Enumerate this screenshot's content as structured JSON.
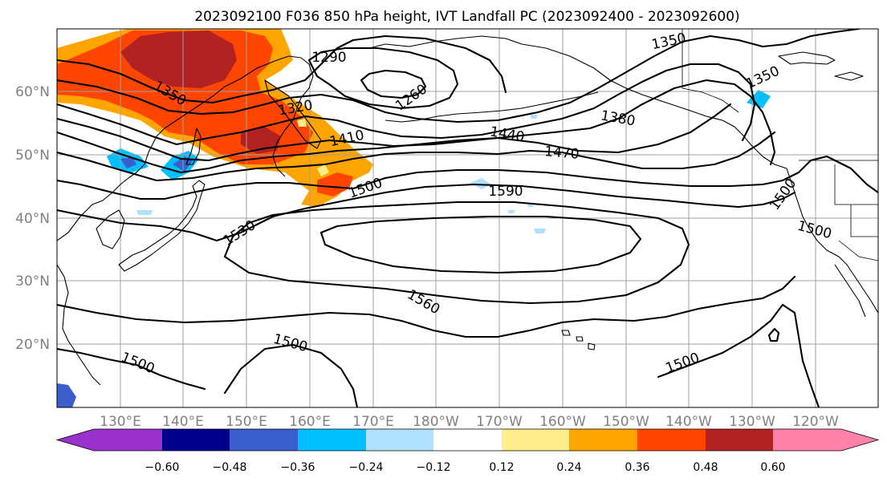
{
  "title": "2023092100 F036 850 hPa height, IVT Landfall PC (2023092400 - 2023092600)",
  "lat_labels": [
    "60°N",
    "50°N",
    "40°N",
    "30°N",
    "20°N"
  ],
  "lon_labels": [
    "130°E",
    "140°E",
    "150°E",
    "160°E",
    "170°E",
    "180°W",
    "170°W",
    "160°W",
    "150°W",
    "140°W",
    "130°W",
    "120°W"
  ],
  "contour_labels": [
    "1290",
    "1260",
    "1350",
    "1320",
    "1350",
    "1380",
    "1350",
    "1410",
    "1440",
    "1470",
    "1500",
    "1590",
    "1530",
    "1500",
    "1500",
    "1560",
    "1500",
    "1500",
    "1500"
  ],
  "colorbar": {
    "ticks": [
      "−0.60",
      "−0.48",
      "−0.36",
      "−0.24",
      "−0.12",
      "0.12",
      "0.24",
      "0.36",
      "0.48",
      "0.60"
    ],
    "colors": [
      "#9932cc",
      "#00008b",
      "#3a5fcd",
      "#00bfff",
      "#b0e2ff",
      "#ffffff",
      "#ffec8b",
      "#ffa500",
      "#ff4500",
      "#b22222",
      "#ff82ab"
    ]
  },
  "colors": {
    "shading_orange": "#ffa500",
    "shading_red": "#ff4500",
    "shading_darkred": "#b22222",
    "shading_yellow": "#ffec8b",
    "shading_blue": "#3a5fcd",
    "shading_cyan": "#00bfff",
    "shading_lightblue": "#b0e2ff"
  }
}
